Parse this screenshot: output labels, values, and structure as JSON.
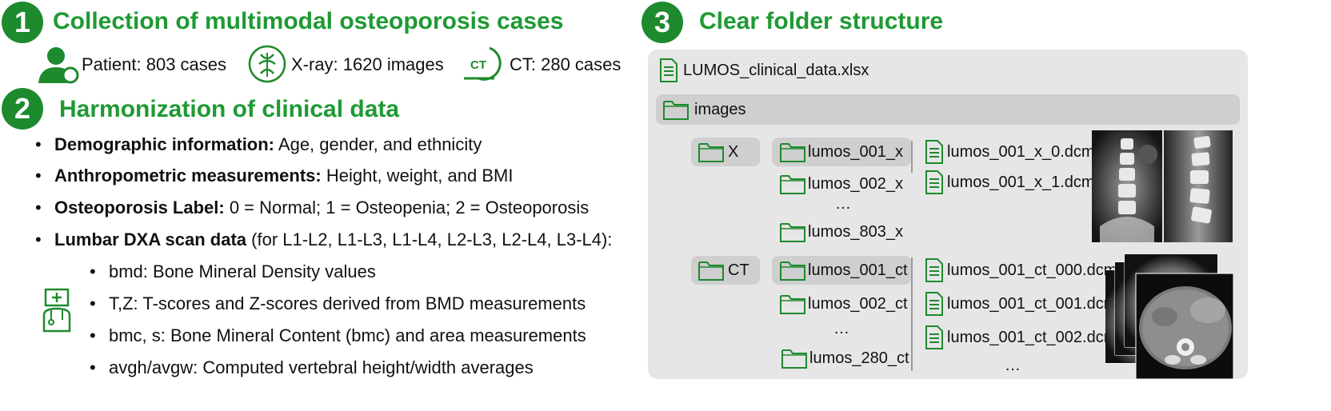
{
  "section1": {
    "number": "1",
    "title": "Collection of multimodal osteoporosis cases",
    "stats": [
      {
        "icon": "patient-icon",
        "label": "Patient: 803 cases"
      },
      {
        "icon": "xray-spine-icon",
        "label": "X-ray: 1620 images"
      },
      {
        "icon": "ct-scanner-icon",
        "label": "CT: 280 cases",
        "icon_text": "CT"
      }
    ]
  },
  "section2": {
    "number": "2",
    "title": "Harmonization of clinical data",
    "bullets": [
      {
        "bold": "Demographic information:",
        "text": " Age, gender, and ethnicity"
      },
      {
        "bold": "Anthropometric measurements:",
        "text": " Height, weight, and BMI"
      },
      {
        "bold": "Osteoporosis Label:",
        "text": " 0 = Normal; 1 = Osteopenia; 2 = Osteoporosis"
      },
      {
        "bold": "Lumbar DXA scan data",
        "text": " (for L1-L2, L1-L3, L1-L4, L2-L3, L2-L4, L3-L4):"
      }
    ],
    "sub_bullets": [
      "bmd: Bone Mineral Density values",
      "T,Z: T-scores and Z-scores derived from BMD measurements",
      "bmc, s: Bone Mineral Content (bmc) and area measurements",
      "avgh/avgw: Computed vertebral height/width averages"
    ]
  },
  "section3": {
    "number": "3",
    "title": "Clear folder structure",
    "root_file": "LUMOS_clinical_data.xlsx",
    "images_folder": "images",
    "x_folder": "X",
    "x_subfolders": [
      "lumos_001_x",
      "lumos_002_x",
      "…",
      "lumos_803_x"
    ],
    "x_files": [
      "lumos_001_x_0.dcm",
      "lumos_001_x_1.dcm"
    ],
    "ct_folder": "CT",
    "ct_subfolders": [
      "lumos_001_ct",
      "lumos_002_ct",
      "…",
      "lumos_280_ct"
    ],
    "ct_files": [
      "lumos_001_ct_000.dcm",
      "lumos_001_ct_001.dcm",
      "lumos_001_ct_002.dcm",
      "…"
    ]
  },
  "colors": {
    "accent": "#1e8a2e",
    "heading": "#1e9a33",
    "panel": "#e6e6e6",
    "highlight": "#cfcfcf"
  }
}
